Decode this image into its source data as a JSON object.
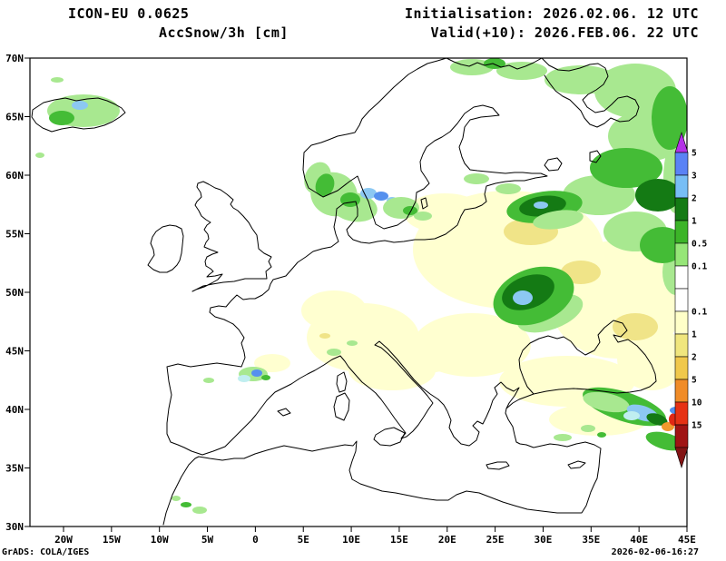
{
  "header": {
    "model": "ICON-EU 0.0625",
    "variable": "AccSnow/3h [cm]",
    "init": "Initialisation: 2026.02.06. 12 UTC",
    "valid": "Valid(+10): 2026.FEB.06. 22 UTC"
  },
  "footer": {
    "left": "GrADS: COLA/IGES",
    "right": "2026-02-06-16:27"
  },
  "axes": {
    "lat": [
      "70N",
      "65N",
      "60N",
      "55N",
      "50N",
      "45N",
      "40N",
      "35N",
      "30N"
    ],
    "lon": [
      "20W",
      "15W",
      "10W",
      "5W",
      "0",
      "5E",
      "10E",
      "15E",
      "20E",
      "25E",
      "30E",
      "35E",
      "40E",
      "45E"
    ]
  },
  "colorbar": {
    "up_arrow": "#b432e6",
    "down_arrow": "#821414",
    "segments": [
      {
        "color": "#5a82f5",
        "label": "5"
      },
      {
        "color": "#78bef5",
        "label": "3"
      },
      {
        "color": "#147a14",
        "label": "2"
      },
      {
        "color": "#3cb428",
        "label": "1"
      },
      {
        "color": "#96e678",
        "label": "0.5"
      },
      {
        "color": "#ffffff",
        "label": "0.1"
      },
      {
        "color": "#ffffff",
        "label": ""
      },
      {
        "color": "#ffffc8",
        "label": "0.1"
      },
      {
        "color": "#f0e67d",
        "label": "1"
      },
      {
        "color": "#f0c84b",
        "label": "2"
      },
      {
        "color": "#f08c28",
        "label": "5"
      },
      {
        "color": "#e63214",
        "label": "10"
      },
      {
        "color": "#a01414",
        "label": "15"
      }
    ]
  },
  "map": {
    "palette": {
      "lg": "#a8e890",
      "g": "#44bc36",
      "dg": "#147a14",
      "cr": "#ffffd0",
      "yl": "#f0e488",
      "lb": "#8cc8f2",
      "bl": "#5590ee",
      "cy": "#c0eef0",
      "or": "#f0992e",
      "rd": "#e02814",
      "dr": "#8c1010"
    },
    "patches": [
      [
        560,
        275,
        105,
        65,
        0,
        "cr"
      ],
      [
        680,
        330,
        75,
        65,
        0,
        "cr"
      ],
      [
        490,
        235,
        45,
        22,
        0,
        "cr"
      ],
      [
        520,
        380,
        65,
        35,
        0,
        "cr"
      ],
      [
        625,
        420,
        75,
        28,
        0,
        "cr"
      ],
      [
        718,
        395,
        38,
        35,
        0,
        "cr"
      ],
      [
        660,
        462,
        55,
        18,
        0,
        "cr"
      ],
      [
        400,
        372,
        62,
        38,
        0,
        "cr"
      ],
      [
        368,
        342,
        36,
        22,
        0,
        "cr"
      ],
      [
        432,
        408,
        48,
        22,
        0,
        "cr"
      ],
      [
        470,
        398,
        28,
        13,
        0,
        "cr"
      ],
      [
        300,
        400,
        20,
        10,
        0,
        "cr"
      ],
      [
        640,
        300,
        22,
        13,
        0,
        "yl"
      ],
      [
        700,
        360,
        25,
        15,
        0,
        "yl"
      ],
      [
        585,
        255,
        30,
        15,
        0,
        "yl"
      ],
      [
        358,
        370,
        6,
        3,
        0,
        "yl"
      ],
      [
        640,
        88,
        40,
        16,
        0,
        "lg"
      ],
      [
        700,
        100,
        45,
        30,
        0,
        "lg"
      ],
      [
        712,
        150,
        42,
        28,
        0,
        "lg"
      ],
      [
        745,
        195,
        14,
        40,
        0,
        "lg"
      ],
      [
        660,
        215,
        40,
        22,
        0,
        "lg"
      ],
      [
        700,
        255,
        35,
        22,
        0,
        "lg"
      ],
      [
        745,
        300,
        15,
        25,
        0,
        "lg"
      ],
      [
        520,
        74,
        24,
        9,
        0,
        "lg"
      ],
      [
        575,
        78,
        28,
        10,
        0,
        "lg"
      ],
      [
        738,
        130,
        20,
        35,
        0,
        "g"
      ],
      [
        690,
        185,
        40,
        22,
        0,
        "g"
      ],
      [
        730,
        270,
        25,
        20,
        0,
        "g"
      ],
      [
        725,
        215,
        25,
        18,
        0,
        "dg"
      ],
      [
        545,
        70,
        12,
        6,
        0,
        "g"
      ],
      [
        92,
        122,
        40,
        18,
        0,
        "lg"
      ],
      [
        68,
        130,
        14,
        8,
        0,
        "g"
      ],
      [
        88,
        116,
        9,
        5,
        0,
        "lb"
      ],
      [
        63,
        88,
        7,
        3,
        0,
        "lg"
      ],
      [
        44,
        171,
        5,
        3,
        0,
        "lg"
      ],
      [
        350,
        196,
        14,
        18,
        25,
        "lg"
      ],
      [
        368,
        214,
        26,
        24,
        20,
        "lg"
      ],
      [
        358,
        204,
        10,
        13,
        20,
        "g"
      ],
      [
        390,
        228,
        26,
        16,
        10,
        "lg"
      ],
      [
        386,
        220,
        11,
        8,
        0,
        "g"
      ],
      [
        406,
        213,
        9,
        6,
        0,
        "lb"
      ],
      [
        420,
        216,
        8,
        5,
        0,
        "bl"
      ],
      [
        432,
        221,
        6,
        4,
        0,
        "lb"
      ],
      [
        442,
        229,
        20,
        12,
        0,
        "lg"
      ],
      [
        452,
        232,
        8,
        5,
        0,
        "g"
      ],
      [
        466,
        238,
        10,
        5,
        0,
        "lg"
      ],
      [
        525,
        197,
        14,
        6,
        0,
        "lg"
      ],
      [
        560,
        208,
        14,
        6,
        0,
        "lg"
      ],
      [
        600,
        228,
        42,
        17,
        -8,
        "g"
      ],
      [
        598,
        227,
        26,
        11,
        -8,
        "dg"
      ],
      [
        615,
        242,
        28,
        10,
        -8,
        "lg"
      ],
      [
        596,
        226,
        8,
        4,
        0,
        "lb"
      ],
      [
        606,
        345,
        38,
        18,
        -20,
        "lg"
      ],
      [
        588,
        326,
        46,
        30,
        -20,
        "g"
      ],
      [
        582,
        322,
        30,
        18,
        -20,
        "dg"
      ],
      [
        576,
        328,
        11,
        8,
        0,
        "lb"
      ],
      [
        368,
        388,
        8,
        4,
        0,
        "lg"
      ],
      [
        388,
        378,
        6,
        3,
        0,
        "lg"
      ],
      [
        279,
        412,
        16,
        8,
        0,
        "lg"
      ],
      [
        283,
        411,
        6,
        4,
        0,
        "bl"
      ],
      [
        269,
        417,
        7,
        4,
        0,
        "cy"
      ],
      [
        293,
        416,
        5,
        3,
        0,
        "g"
      ],
      [
        230,
        419,
        6,
        3,
        0,
        "lg"
      ],
      [
        205,
        556,
        6,
        3,
        0,
        "g"
      ],
      [
        220,
        562,
        8,
        4,
        0,
        "lg"
      ],
      [
        194,
        549,
        5,
        3,
        0,
        "lg"
      ],
      [
        620,
        482,
        10,
        4,
        0,
        "lg"
      ],
      [
        648,
        472,
        8,
        4,
        0,
        "lg"
      ],
      [
        663,
        479,
        5,
        3,
        0,
        "g"
      ],
      [
        688,
        448,
        48,
        16,
        18,
        "g"
      ],
      [
        668,
        443,
        26,
        10,
        12,
        "lg"
      ],
      [
        708,
        455,
        18,
        8,
        18,
        "lb"
      ],
      [
        696,
        458,
        9,
        5,
        0,
        "cy"
      ],
      [
        724,
        462,
        12,
        6,
        18,
        "dg"
      ],
      [
        736,
        470,
        7,
        5,
        0,
        "or"
      ],
      [
        743,
        462,
        6,
        7,
        0,
        "rd"
      ],
      [
        751,
        474,
        5,
        6,
        0,
        "rd"
      ],
      [
        753,
        464,
        3,
        4,
        0,
        "dr"
      ],
      [
        733,
        486,
        22,
        9,
        15,
        "g"
      ],
      [
        745,
        452,
        7,
        4,
        0,
        "bl"
      ],
      [
        757,
        480,
        6,
        8,
        0,
        "g"
      ]
    ]
  }
}
